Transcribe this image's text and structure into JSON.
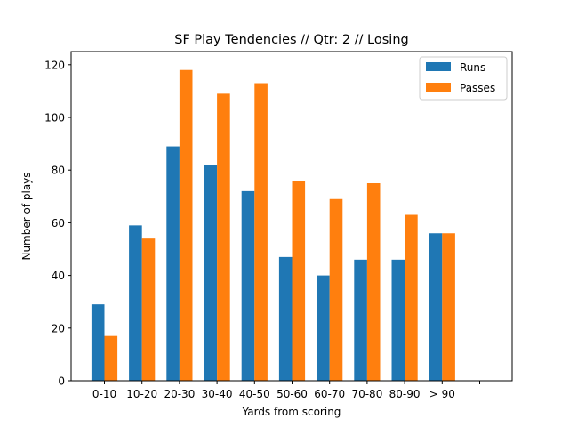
{
  "chart_data": {
    "type": "bar",
    "title": "SF Play Tendencies // Qtr: 2 // Losing",
    "xlabel": "Yards from scoring",
    "ylabel": "Number of plays",
    "categories": [
      "0-10",
      "10-20",
      "20-30",
      "30-40",
      "40-50",
      "50-60",
      "60-70",
      "70-80",
      "80-90",
      "> 90",
      ""
    ],
    "series": [
      {
        "name": "Runs",
        "color": "#1f77b4",
        "values": [
          29,
          59,
          89,
          82,
          72,
          47,
          40,
          46,
          46,
          56,
          0
        ]
      },
      {
        "name": "Passes",
        "color": "#ff7f0e",
        "values": [
          17,
          54,
          118,
          109,
          113,
          76,
          69,
          75,
          63,
          56,
          0
        ]
      }
    ],
    "ylim": [
      0,
      125
    ],
    "yticks": [
      0,
      20,
      40,
      60,
      80,
      100,
      120
    ],
    "grid": false,
    "legend_position": "top-right"
  }
}
